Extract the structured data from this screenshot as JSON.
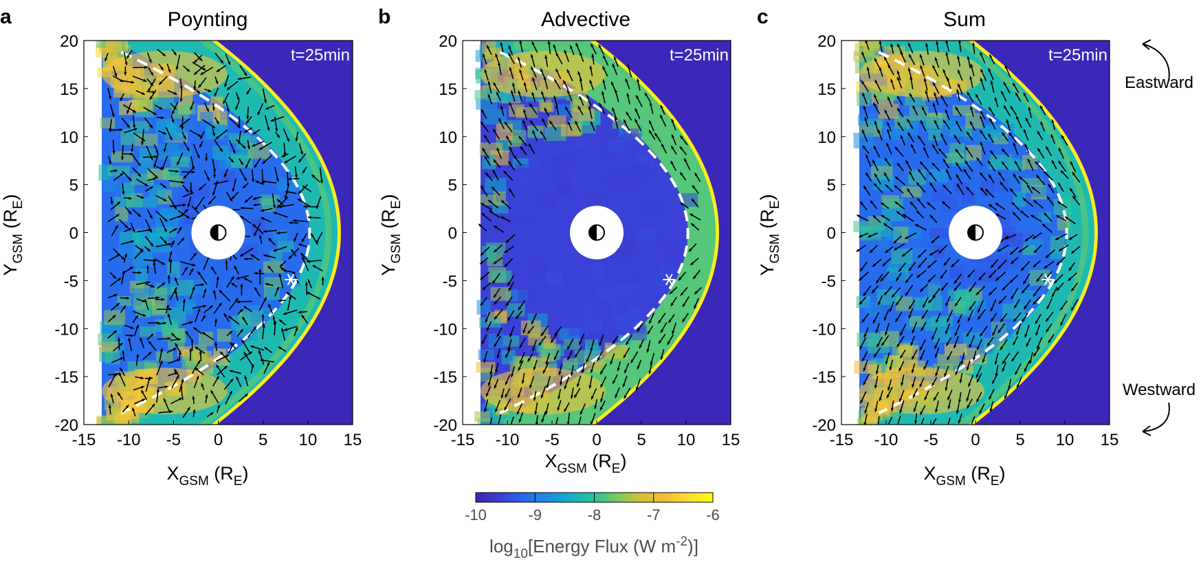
{
  "figure": {
    "colors": {
      "background_flux": "#3b27b8",
      "colormap": [
        "#3d26a8",
        "#3a41d6",
        "#2c64f0",
        "#1a8de0",
        "#10b1c9",
        "#2bc39a",
        "#7ec85a",
        "#d6bf3a",
        "#f6bd38",
        "#f9de2c",
        "#f9fb0e"
      ],
      "arrow": "#000000",
      "boundary_line": "#ffffff"
    }
  },
  "chart_data": [
    {
      "type": "heatmap",
      "panel_letter": "a",
      "title": "Poynting",
      "time_label": "t=25min",
      "xlabel": {
        "main": "X",
        "sub": "GSM",
        "unit_pre": " (R",
        "unit_sub": "E",
        "unit_post": ")"
      },
      "ylabel": {
        "main": "Y",
        "sub": "GSM",
        "unit_pre": " (R",
        "unit_sub": "E",
        "unit_post": ")"
      },
      "xlim": [
        -15,
        15
      ],
      "ylim": [
        -20,
        20
      ],
      "xticks": [
        "-15",
        "-10",
        "-5",
        "0",
        "5",
        "10",
        "15"
      ],
      "yticks": [
        "20",
        "15",
        "10",
        "5",
        "0",
        "-5",
        "-10",
        "-15",
        "-20"
      ],
      "bow_shock_nose_x": 13.5,
      "magnetopause_nose_x": 10.2,
      "star_marker": {
        "x": 8.1,
        "y": -4.9
      },
      "arrow_pattern": "divergent"
    },
    {
      "type": "heatmap",
      "panel_letter": "b",
      "title": "Advective",
      "time_label": "t=25min",
      "xlabel": {
        "main": "X",
        "sub": "GSM",
        "unit_pre": " (R",
        "unit_sub": "E",
        "unit_post": ")"
      },
      "ylabel": {
        "main": "Y",
        "sub": "GSM",
        "unit_pre": " (R",
        "unit_sub": "E",
        "unit_post": ")"
      },
      "xlim": [
        -15,
        15
      ],
      "ylim": [
        -20,
        20
      ],
      "xticks": [
        "-15",
        "-10",
        "-5",
        "0",
        "5",
        "10",
        "15"
      ],
      "yticks": [
        "20",
        "15",
        "10",
        "5",
        "0",
        "-5",
        "-10",
        "-15",
        "-20"
      ],
      "bow_shock_nose_x": 13.5,
      "magnetopause_nose_x": 10.2,
      "star_marker": {
        "x": 8.1,
        "y": -4.9
      },
      "arrow_pattern": "tailward"
    },
    {
      "type": "heatmap",
      "panel_letter": "c",
      "title": "Sum",
      "time_label": "t=25min",
      "xlabel": {
        "main": "X",
        "sub": "GSM",
        "unit_pre": " (R",
        "unit_sub": "E",
        "unit_post": ")"
      },
      "ylabel": {
        "main": "Y",
        "sub": "GSM",
        "unit_pre": " (R",
        "unit_sub": "E",
        "unit_post": ")"
      },
      "xlim": [
        -15,
        15
      ],
      "ylim": [
        -20,
        20
      ],
      "xticks": [
        "-15",
        "-10",
        "-5",
        "0",
        "5",
        "10",
        "15"
      ],
      "yticks": [
        "20",
        "15",
        "10",
        "5",
        "0",
        "-5",
        "-10",
        "-15",
        "-20"
      ],
      "bow_shock_nose_x": 13.5,
      "magnetopause_nose_x": 10.2,
      "star_marker": {
        "x": 8.1,
        "y": -4.9
      },
      "arrow_pattern": "tailward",
      "annotations": {
        "top": "Eastward",
        "bottom": "Westward"
      }
    }
  ],
  "colorbar": {
    "range": [
      -10,
      -6
    ],
    "ticks": [
      "-10",
      "-9",
      "-8",
      "-7",
      "-6"
    ],
    "label_pre": "log",
    "label_sub": "10",
    "label_mid": "[Energy Flux (W m",
    "label_sup": "-2",
    "label_post": ")]"
  }
}
